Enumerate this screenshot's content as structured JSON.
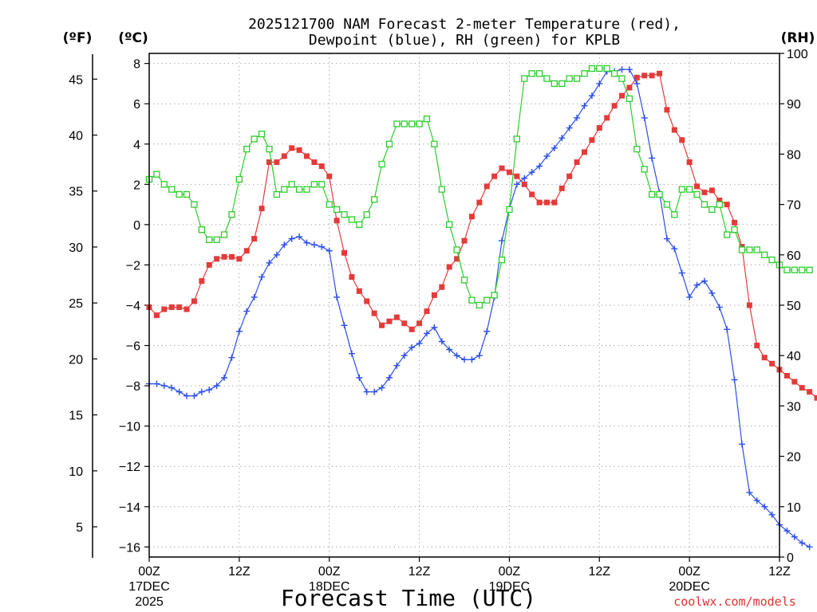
{
  "chart_data": {
    "type": "line",
    "title_line1": "2025121700 NAM Forecast 2-meter Temperature (red),",
    "title_line2": "Dewpoint (blue), RH (green) for KPLB",
    "unit_f": "(ºF)",
    "unit_c": "(ºC)",
    "unit_rh": "(RH)",
    "xlabel": "Forecast Time (UTC)",
    "credit": "coolwx.com/models",
    "x_range_hours": [
      0,
      84
    ],
    "x_ticks": [
      {
        "h": 0,
        "line1": "00Z",
        "line2": "17DEC",
        "line3": "2025"
      },
      {
        "h": 12,
        "line1": "12Z",
        "line2": "",
        "line3": ""
      },
      {
        "h": 24,
        "line1": "00Z",
        "line2": "18DEC",
        "line3": ""
      },
      {
        "h": 36,
        "line1": "12Z",
        "line2": "",
        "line3": ""
      },
      {
        "h": 48,
        "line1": "00Z",
        "line2": "19DEC",
        "line3": ""
      },
      {
        "h": 60,
        "line1": "12Z",
        "line2": "",
        "line3": ""
      },
      {
        "h": 72,
        "line1": "00Z",
        "line2": "20DEC",
        "line3": ""
      },
      {
        "h": 84,
        "line1": "12Z",
        "line2": "",
        "line3": ""
      }
    ],
    "y_range_c": [
      -16.5,
      8.5
    ],
    "y_ticks_c": [
      "8",
      "6",
      "4",
      "2",
      "0",
      "−2",
      "−4",
      "−6",
      "−8",
      "−10",
      "−12",
      "−14",
      "−16"
    ],
    "y_ticks_f": [
      "45",
      "40",
      "35",
      "30",
      "25",
      "20",
      "15",
      "10",
      "5"
    ],
    "y_range_rh": [
      0,
      100
    ],
    "y_ticks_rh": [
      "100",
      "90",
      "80",
      "70",
      "60",
      "50",
      "40",
      "30",
      "20",
      "10",
      "0"
    ],
    "grid": true,
    "series": [
      {
        "name": "2-meter Temperature",
        "unit": "C",
        "color": "#e53a3a",
        "marker": "filled-square",
        "values": [
          -4.1,
          -4.5,
          -4.2,
          -4.1,
          -4.1,
          -4.2,
          -3.8,
          -2.8,
          -2.0,
          -1.7,
          -1.6,
          -1.6,
          -1.7,
          -1.3,
          -0.7,
          0.8,
          3.1,
          3.1,
          3.4,
          3.8,
          3.7,
          3.4,
          3.1,
          2.9,
          2.4,
          0.2,
          -1.4,
          -2.6,
          -3.3,
          -3.8,
          -4.4,
          -5.0,
          -4.8,
          -4.6,
          -4.9,
          -5.2,
          -4.9,
          -4.3,
          -3.5,
          -3.1,
          -2.1,
          -1.7,
          -0.8,
          0.4,
          1.1,
          1.9,
          2.4,
          2.8,
          2.6,
          2.4,
          2.0,
          1.5,
          1.1,
          1.1,
          1.1,
          1.8,
          2.4,
          3.1,
          3.6,
          4.2,
          4.8,
          5.3,
          5.9,
          6.4,
          6.8,
          7.3,
          7.4,
          7.4,
          7.5,
          5.7,
          4.7,
          4.2,
          3.1,
          1.9,
          1.6,
          1.7,
          1.2,
          1.0,
          0.1,
          -1.1,
          -4.0,
          -6.0,
          -6.6,
          -6.9,
          -7.2,
          -7.5,
          -7.8,
          -8.1,
          -8.3,
          -8.6
        ]
      },
      {
        "name": "Dewpoint",
        "unit": "C",
        "color": "#2b4ee8",
        "marker": "plus",
        "values": [
          -7.9,
          -7.9,
          -8.0,
          -8.1,
          -8.3,
          -8.5,
          -8.5,
          -8.3,
          -8.2,
          -8.0,
          -7.6,
          -6.6,
          -5.3,
          -4.3,
          -3.6,
          -2.6,
          -1.9,
          -1.5,
          -1.0,
          -0.7,
          -0.6,
          -0.9,
          -1.0,
          -1.1,
          -1.3,
          -3.6,
          -5.0,
          -6.4,
          -7.6,
          -8.3,
          -8.3,
          -8.1,
          -7.6,
          -7.0,
          -6.5,
          -6.1,
          -5.9,
          -5.4,
          -5.1,
          -5.8,
          -6.2,
          -6.5,
          -6.7,
          -6.7,
          -6.5,
          -5.3,
          -3.6,
          -0.8,
          0.8,
          2.0,
          2.3,
          2.6,
          2.9,
          3.4,
          3.8,
          4.3,
          4.8,
          5.3,
          5.9,
          6.4,
          7.0,
          7.6,
          7.6,
          7.7,
          7.7,
          7.0,
          5.3,
          3.3,
          1.6,
          -0.7,
          -1.2,
          -2.4,
          -3.6,
          -3.0,
          -2.8,
          -3.4,
          -4.1,
          -5.2,
          -7.7,
          -10.9,
          -13.3,
          -13.7,
          -14.0,
          -14.4,
          -14.9,
          -15.2,
          -15.5,
          -15.8,
          -16.0
        ]
      },
      {
        "name": "RH",
        "unit": "%",
        "color": "#2ecc2e",
        "marker": "open-square",
        "values": [
          75,
          76,
          74,
          73,
          72,
          72,
          70,
          65,
          63,
          63,
          64,
          68,
          75,
          81,
          83,
          84,
          81,
          72,
          73,
          74,
          73,
          73,
          74,
          74,
          70,
          69,
          68,
          67,
          66,
          68,
          71,
          78,
          82,
          86,
          86,
          86,
          86,
          87,
          82,
          73,
          66,
          61,
          55,
          51,
          50,
          51,
          52,
          59,
          69,
          83,
          95,
          96,
          96,
          95,
          94,
          94,
          95,
          95,
          96,
          97,
          97,
          97,
          96,
          95,
          91,
          81,
          77,
          72,
          72,
          70,
          68,
          73,
          73,
          72,
          70,
          69,
          70,
          64,
          65,
          61,
          61,
          61,
          60,
          59,
          58,
          57,
          57,
          57,
          57
        ]
      }
    ]
  }
}
